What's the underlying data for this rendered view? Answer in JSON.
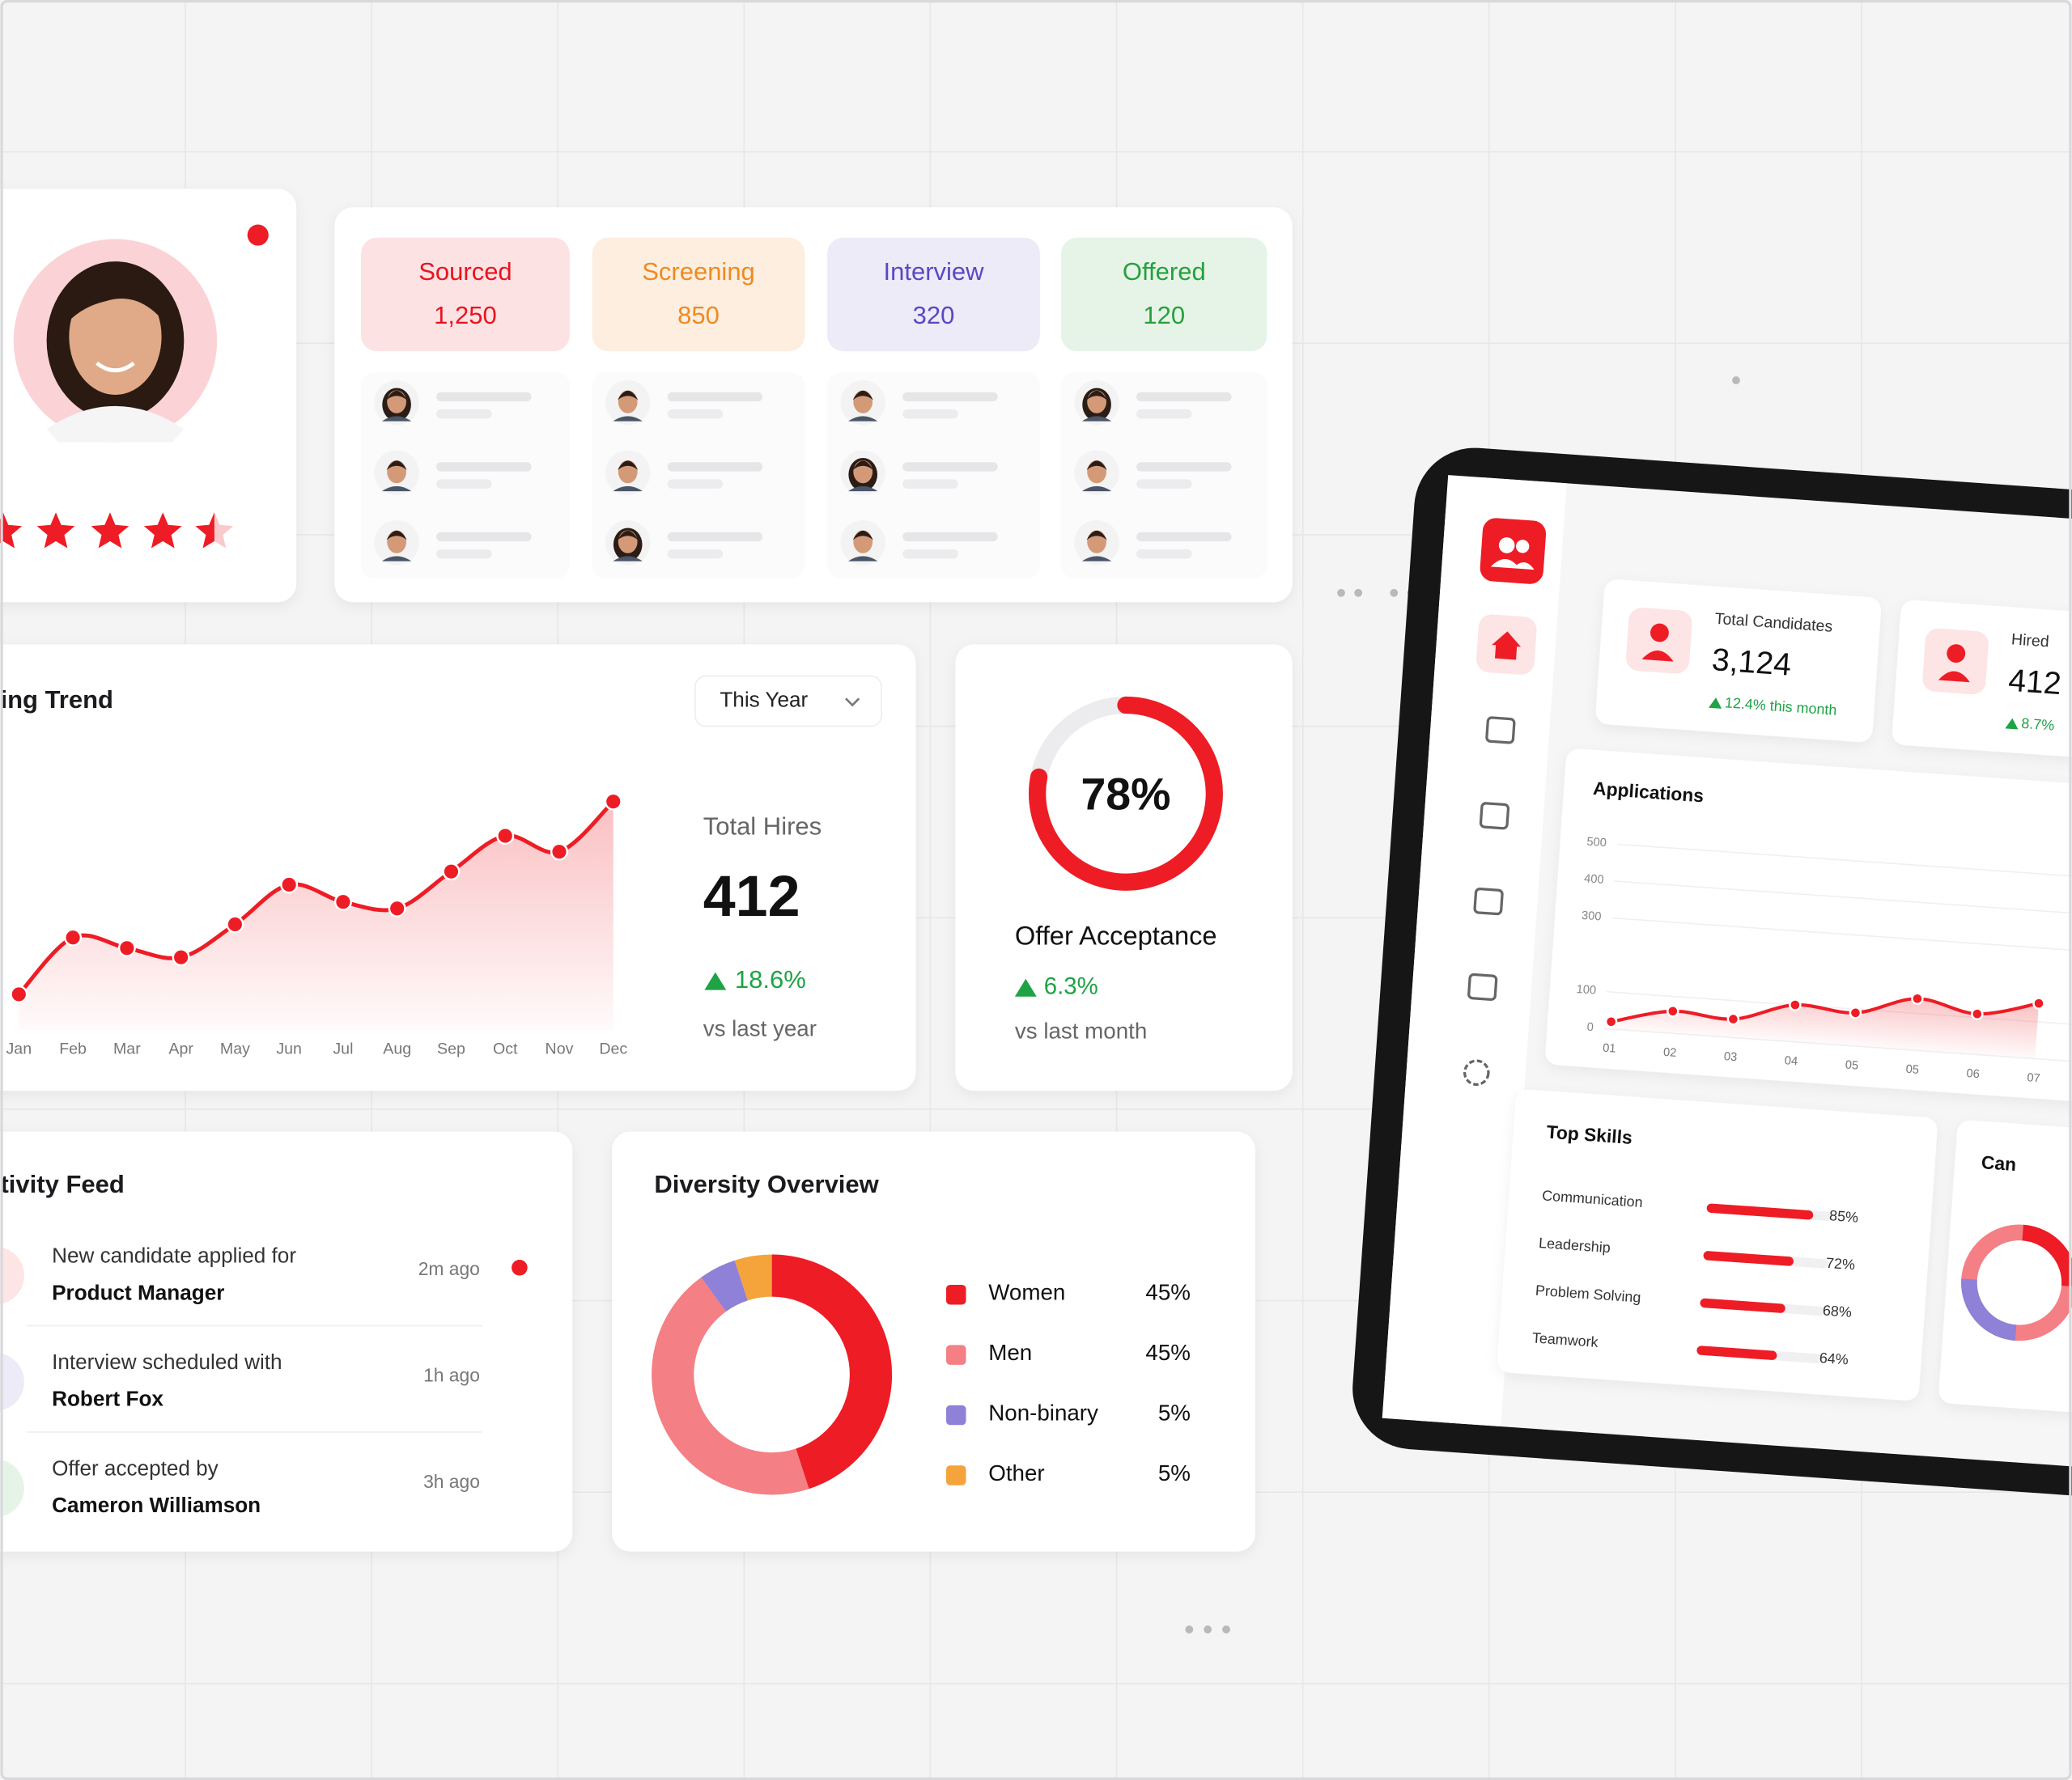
{
  "pipeline": [
    {
      "stage": "Sourced",
      "count": "1,250"
    },
    {
      "stage": "Screening",
      "count": "850"
    },
    {
      "stage": "Interview",
      "count": "320"
    },
    {
      "stage": "Offered",
      "count": "120"
    }
  ],
  "hires": {
    "label": "Total Hires",
    "value": "412",
    "change": "18.6%",
    "note": "vs last year"
  },
  "offer": {
    "title": "Offer Acceptance",
    "change": "6.3%",
    "note": "vs last month"
  },
  "activity": {
    "title": "tivity Feed",
    "items": [
      {
        "text": "New candidate applied for",
        "subject": "Product Manager",
        "time": "2m ago"
      },
      {
        "text": "Interview scheduled with",
        "subject": "Robert Fox",
        "time": "1h ago"
      },
      {
        "text": "Offer accepted by",
        "subject": "Cameron Williamson",
        "time": "3h ago"
      }
    ]
  },
  "tablet": {
    "cards": [
      {
        "label": "Total Candidates",
        "value": "3,124",
        "change": "12.4% this month"
      },
      {
        "label": "Hired",
        "value": "412",
        "change": "8.7%"
      }
    ],
    "partial_card": "Can"
  },
  "chart_data": [
    {
      "type": "line",
      "title": "ing Trend",
      "filter": "This Year",
      "categories": [
        "Jan",
        "Feb",
        "Mar",
        "Apr",
        "May",
        "Jun",
        "Jul",
        "Aug",
        "Sep",
        "Oct",
        "Nov",
        "Dec"
      ],
      "values": [
        27,
        70,
        62,
        55,
        80,
        110,
        97,
        92,
        120,
        147,
        135,
        173
      ],
      "ylim": [
        0,
        200
      ],
      "color": "#ee1c25"
    },
    {
      "type": "gauge",
      "value": 78,
      "value_label": "78%",
      "ylim": [
        0,
        100
      ],
      "color": "#ee1c25"
    },
    {
      "type": "donut",
      "title": "Diversity Overview",
      "categories": [
        "Women",
        "Men",
        "Non-binary",
        "Other"
      ],
      "values": [
        45,
        45,
        5,
        5
      ],
      "value_labels": [
        "45%",
        "45%",
        "5%",
        "5%"
      ],
      "colors": [
        "#ee1c25",
        "#f47f85",
        "#8f80d8",
        "#f5a33b"
      ]
    },
    {
      "type": "line",
      "title": "Applications",
      "categories": [
        "01",
        "02",
        "03",
        "04",
        "05",
        "05",
        "06",
        "07"
      ],
      "values": [
        20,
        60,
        50,
        100,
        90,
        140,
        110,
        150
      ],
      "ylim": [
        0,
        500
      ],
      "yticks": [
        0,
        100,
        300,
        400,
        500
      ],
      "color": "#ee1c25"
    },
    {
      "type": "hbar",
      "title": "Top Skills",
      "categories": [
        "Communication",
        "Leadership",
        "Problem Solving",
        "Teamwork"
      ],
      "values": [
        85,
        72,
        68,
        64
      ],
      "value_labels": [
        "85%",
        "72%",
        "68%",
        "64%"
      ],
      "xlim": [
        0,
        100
      ],
      "color": "#ee1c25"
    }
  ]
}
